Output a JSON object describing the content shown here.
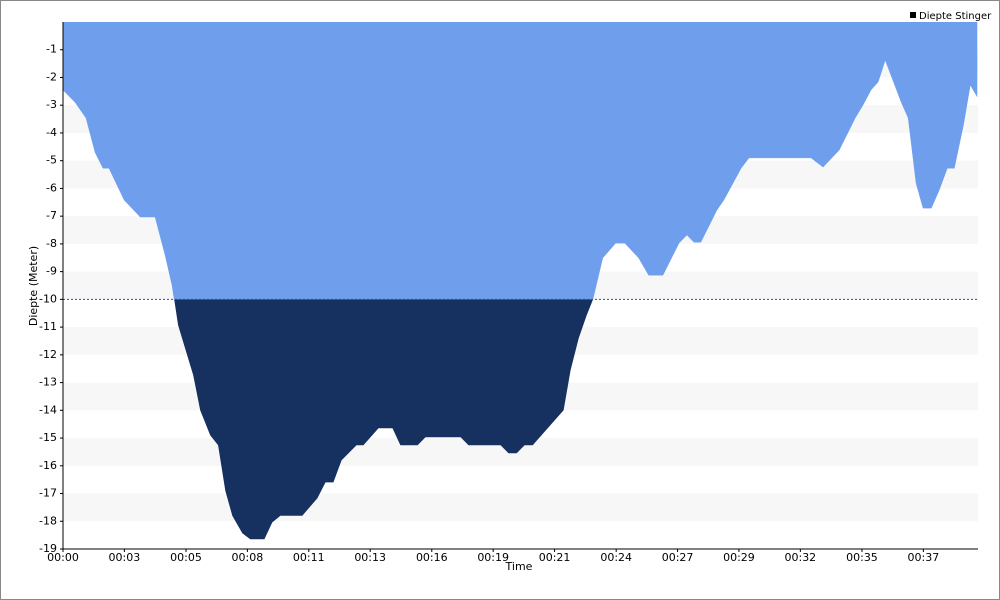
{
  "chart_data": {
    "type": "area",
    "y_label": "Diepte (Meter)",
    "x_label": "Time",
    "x": [
      0,
      0.52,
      0.99,
      1.38,
      1.72,
      1.98,
      2.63,
      3.32,
      3.96,
      4.39,
      4.69,
      4.95,
      5.6,
      5.9,
      6.33,
      6.67,
      6.98,
      7.28,
      7.71,
      8.05,
      8.66,
      9.0,
      9.35,
      10.29,
      10.94,
      11.29,
      11.63,
      11.98,
      12.62,
      12.92,
      13.57,
      14.17,
      14.51,
      15.25,
      15.59,
      17.1,
      17.44,
      18.82,
      19.16,
      19.51,
      19.85,
      20.2,
      21.53,
      21.83,
      22.18,
      22.52,
      22.78,
      23.21,
      23.77,
      24.16,
      24.76,
      25.19,
      25.8,
      26.49,
      26.83,
      27.13,
      27.43,
      28.12,
      28.42,
      29.16,
      29.5,
      32.17,
      32.69,
      33.38,
      34.07,
      34.41,
      34.75,
      35.06,
      35.36,
      36.05,
      36.35,
      36.69,
      36.99,
      37.34,
      37.68,
      38.03,
      38.33,
      38.72,
      39.02,
      39.32
    ],
    "series": [
      {
        "name": "Diepte Stinger",
        "color": "#6f9fec",
        "below_color": "#16305f",
        "values": [
          -2.45,
          -2.9,
          -3.46,
          -4.7,
          -5.27,
          -5.27,
          -6.42,
          -7.03,
          -7.03,
          -8.4,
          -9.5,
          -10.93,
          -12.73,
          -14.0,
          -14.9,
          -15.26,
          -16.9,
          -17.8,
          -18.43,
          -18.65,
          -18.65,
          -18.04,
          -17.8,
          -17.8,
          -17.17,
          -16.6,
          -16.6,
          -15.8,
          -15.26,
          -15.26,
          -14.65,
          -14.65,
          -15.26,
          -15.26,
          -14.97,
          -14.97,
          -15.26,
          -15.26,
          -15.55,
          -15.55,
          -15.26,
          -15.26,
          -14.0,
          -12.55,
          -11.4,
          -10.57,
          -10.03,
          -8.51,
          -7.97,
          -7.97,
          -8.51,
          -9.13,
          -9.13,
          -7.97,
          -7.68,
          -7.94,
          -7.94,
          -6.78,
          -6.42,
          -5.27,
          -4.9,
          -4.9,
          -5.23,
          -4.62,
          -3.46,
          -2.99,
          -2.45,
          -2.16,
          -1.37,
          -2.9,
          -3.46,
          -5.81,
          -6.71,
          -6.71,
          -6.06,
          -5.27,
          -5.27,
          -3.72,
          -2.27,
          -2.7
        ]
      }
    ],
    "threshold": -10,
    "xlim": [
      0,
      39.35
    ],
    "xticks": [
      {
        "value": 0,
        "label": "00:00"
      },
      {
        "value": 2.64,
        "label": "00:03"
      },
      {
        "value": 5.29,
        "label": "00:05"
      },
      {
        "value": 7.93,
        "label": "00:08"
      },
      {
        "value": 10.57,
        "label": "00:11"
      },
      {
        "value": 13.21,
        "label": "00:13"
      },
      {
        "value": 15.86,
        "label": "00:16"
      },
      {
        "value": 18.5,
        "label": "00:19"
      },
      {
        "value": 21.14,
        "label": "00:21"
      },
      {
        "value": 23.79,
        "label": "00:24"
      },
      {
        "value": 26.43,
        "label": "00:27"
      },
      {
        "value": 29.07,
        "label": "00:29"
      },
      {
        "value": 31.71,
        "label": "00:32"
      },
      {
        "value": 34.36,
        "label": "00:35"
      },
      {
        "value": 37,
        "label": "00:37"
      }
    ],
    "ylim": [
      -19,
      0
    ],
    "yticks": [
      -1,
      -2,
      -3,
      -4,
      -5,
      -6,
      -7,
      -8,
      -9,
      -10,
      -11,
      -12,
      -13,
      -14,
      -15,
      -16,
      -17,
      -18,
      -19
    ],
    "legend": "top-right"
  }
}
